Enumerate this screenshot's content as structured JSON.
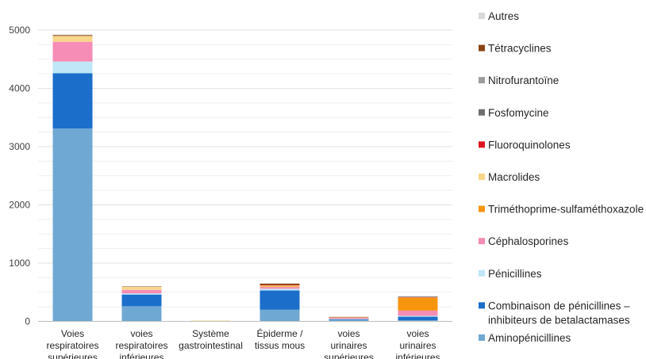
{
  "chart_data": {
    "type": "bar",
    "stacked": true,
    "categories": [
      [
        "Voies",
        "respiratoires",
        "supérieures"
      ],
      [
        "voies",
        "respiratoires",
        "inférieures"
      ],
      [
        "Système",
        "gastrointestinal"
      ],
      [
        "Épiderme /",
        "tissus mous"
      ],
      [
        "voies",
        "urinaires",
        "supérieures"
      ],
      [
        "voies",
        "urinaires",
        "inférieures"
      ]
    ],
    "ylim": [
      0,
      5000
    ],
    "yticks": [
      0,
      1000,
      2000,
      3000,
      4000,
      5000
    ],
    "grid": true,
    "legend_position": "right",
    "series": [
      {
        "name": "Aminopénicillines",
        "color": "#6fa8d2",
        "values": [
          3310,
          260,
          2,
          200,
          25,
          20
        ]
      },
      {
        "name": "Combinaison de pénicillines – inhibiteurs de betalactamases",
        "color": "#1b6fcb",
        "values": [
          950,
          200,
          0,
          330,
          15,
          60
        ]
      },
      {
        "name": "Pénicillines",
        "color": "#bfe7f7",
        "values": [
          200,
          20,
          0,
          30,
          3,
          15
        ]
      },
      {
        "name": "Céphalosporines",
        "color": "#f58db6",
        "values": [
          340,
          60,
          3,
          30,
          20,
          90
        ]
      },
      {
        "name": "Triméthoprime-sulfaméthoxazole",
        "color": "#f7950f",
        "values": [
          0,
          0,
          5,
          10,
          5,
          220
        ]
      },
      {
        "name": "Macrolides",
        "color": "#f7d68c",
        "values": [
          100,
          55,
          4,
          20,
          5,
          10
        ]
      },
      {
        "name": "Fluoroquinolones",
        "color": "#e0141e",
        "values": [
          0,
          0,
          0,
          5,
          2,
          3
        ]
      },
      {
        "name": "Fosfomycine",
        "color": "#6e6e6e",
        "values": [
          0,
          0,
          0,
          0,
          0,
          5
        ]
      },
      {
        "name": "Nitrofurantoïne",
        "color": "#9b9b9b",
        "values": [
          0,
          0,
          0,
          0,
          0,
          5
        ]
      },
      {
        "name": "Tétracyclines",
        "color": "#8b4513",
        "values": [
          15,
          5,
          0,
          25,
          2,
          2
        ]
      },
      {
        "name": "Autres",
        "color": "#d9d9d9",
        "values": [
          10,
          5,
          0,
          5,
          2,
          2
        ]
      }
    ]
  }
}
